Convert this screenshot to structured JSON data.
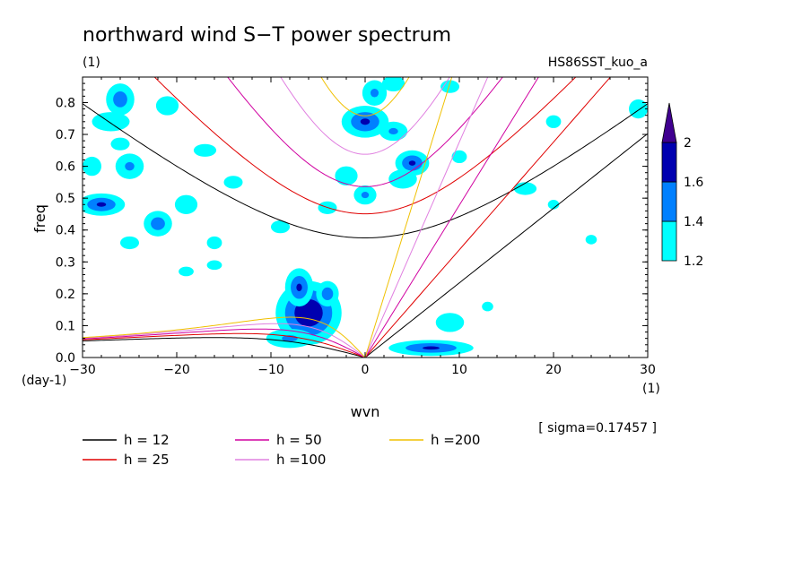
{
  "chart_data": {
    "type": "heatmap",
    "title": "northward wind S−T power spectrum",
    "subtitle_left": "(1)",
    "subtitle_right": "HS86SST_kuo_a",
    "xlabel": "wvn",
    "ylabel": "freq",
    "x_unit": "(1)",
    "y_unit": "(day-1)",
    "xlim": [
      -30,
      30
    ],
    "ylim": [
      0,
      0.88
    ],
    "x_ticks": [
      -30,
      -20,
      -10,
      0,
      10,
      20,
      30
    ],
    "y_ticks": [
      0.0,
      0.1,
      0.2,
      0.3,
      0.4,
      0.5,
      0.6,
      0.7,
      0.8
    ],
    "y_tick_labels": [
      "0.0",
      "0.1",
      "0.2",
      "0.3",
      "0.4",
      "0.5",
      "0.6",
      "0.7",
      "0.8"
    ],
    "sigma_note": "[ sigma=0.17457 ]",
    "colorbar": {
      "levels": [
        1.2,
        1.4,
        1.6,
        2
      ],
      "labels": [
        "1.2",
        "1.4",
        "1.6",
        "2"
      ],
      "colors": [
        "#00ffff",
        "#0080ff",
        "#0000b0",
        "#400090"
      ]
    },
    "dispersion_curves": [
      {
        "label": "h = 12",
        "h": 12,
        "color": "#000000"
      },
      {
        "label": "h = 25",
        "h": 25,
        "color": "#e00000"
      },
      {
        "label": "h = 50",
        "h": 50,
        "color": "#d000a0"
      },
      {
        "label": "h =100",
        "h": 100,
        "color": "#e080e0"
      },
      {
        "label": "h =200",
        "h": 200,
        "color": "#f0c000"
      }
    ],
    "blobs": [
      {
        "x": -6,
        "y": 0.14,
        "rx": 3.5,
        "ry": 0.1,
        "v": 1.9
      },
      {
        "x": -7,
        "y": 0.22,
        "rx": 1.5,
        "ry": 0.06,
        "v": 1.7
      },
      {
        "x": -4,
        "y": 0.2,
        "rx": 1.2,
        "ry": 0.04,
        "v": 1.6
      },
      {
        "x": -8,
        "y": 0.06,
        "rx": 2.5,
        "ry": 0.03,
        "v": 1.5
      },
      {
        "x": 7,
        "y": 0.03,
        "rx": 4.5,
        "ry": 0.025,
        "v": 1.7
      },
      {
        "x": 9,
        "y": 0.11,
        "rx": 1.5,
        "ry": 0.03,
        "v": 1.3
      },
      {
        "x": 0,
        "y": 0.74,
        "rx": 2.5,
        "ry": 0.05,
        "v": 1.7
      },
      {
        "x": 1,
        "y": 0.83,
        "rx": 1.3,
        "ry": 0.04,
        "v": 1.5
      },
      {
        "x": 3,
        "y": 0.71,
        "rx": 1.5,
        "ry": 0.03,
        "v": 1.5
      },
      {
        "x": 5,
        "y": 0.61,
        "rx": 1.8,
        "ry": 0.04,
        "v": 1.7
      },
      {
        "x": 4,
        "y": 0.56,
        "rx": 1.5,
        "ry": 0.03,
        "v": 1.4
      },
      {
        "x": 0,
        "y": 0.51,
        "rx": 1.2,
        "ry": 0.03,
        "v": 1.5
      },
      {
        "x": -2,
        "y": 0.57,
        "rx": 1.2,
        "ry": 0.03,
        "v": 1.3
      },
      {
        "x": -26,
        "y": 0.81,
        "rx": 1.5,
        "ry": 0.05,
        "v": 1.6
      },
      {
        "x": -27,
        "y": 0.74,
        "rx": 2,
        "ry": 0.03,
        "v": 1.4
      },
      {
        "x": -25,
        "y": 0.6,
        "rx": 1.5,
        "ry": 0.04,
        "v": 1.5
      },
      {
        "x": -28,
        "y": 0.48,
        "rx": 2.5,
        "ry": 0.035,
        "v": 1.7
      },
      {
        "x": -22,
        "y": 0.42,
        "rx": 1.5,
        "ry": 0.04,
        "v": 1.6
      },
      {
        "x": -19,
        "y": 0.48,
        "rx": 1.2,
        "ry": 0.03,
        "v": 1.4
      },
      {
        "x": -26,
        "y": 0.67,
        "rx": 1,
        "ry": 0.02,
        "v": 1.3
      },
      {
        "x": -21,
        "y": 0.79,
        "rx": 1.2,
        "ry": 0.03,
        "v": 1.4
      },
      {
        "x": -17,
        "y": 0.65,
        "rx": 1.2,
        "ry": 0.02,
        "v": 1.3
      },
      {
        "x": -16,
        "y": 0.36,
        "rx": 0.8,
        "ry": 0.02,
        "v": 1.3
      },
      {
        "x": -16,
        "y": 0.29,
        "rx": 0.8,
        "ry": 0.015,
        "v": 1.4
      },
      {
        "x": -19,
        "y": 0.27,
        "rx": 0.8,
        "ry": 0.015,
        "v": 1.3
      },
      {
        "x": -25,
        "y": 0.36,
        "rx": 1,
        "ry": 0.02,
        "v": 1.3
      },
      {
        "x": -14,
        "y": 0.55,
        "rx": 1,
        "ry": 0.02,
        "v": 1.3
      },
      {
        "x": 3,
        "y": 0.86,
        "rx": 1.2,
        "ry": 0.025,
        "v": 1.4
      },
      {
        "x": 9,
        "y": 0.85,
        "rx": 1,
        "ry": 0.02,
        "v": 1.3
      },
      {
        "x": 10,
        "y": 0.63,
        "rx": 0.8,
        "ry": 0.02,
        "v": 1.4
      },
      {
        "x": 17,
        "y": 0.53,
        "rx": 1.2,
        "ry": 0.02,
        "v": 1.3
      },
      {
        "x": 29,
        "y": 0.78,
        "rx": 1,
        "ry": 0.03,
        "v": 1.3
      },
      {
        "x": 20,
        "y": 0.74,
        "rx": 0.8,
        "ry": 0.02,
        "v": 1.3
      },
      {
        "x": -9,
        "y": 0.41,
        "rx": 1,
        "ry": 0.02,
        "v": 1.3
      },
      {
        "x": 13,
        "y": 0.16,
        "rx": 0.6,
        "ry": 0.015,
        "v": 1.3
      },
      {
        "x": -4,
        "y": 0.47,
        "rx": 1,
        "ry": 0.02,
        "v": 1.3
      },
      {
        "x": 20,
        "y": 0.48,
        "rx": 0.6,
        "ry": 0.015,
        "v": 1.3
      },
      {
        "x": 24,
        "y": 0.37,
        "rx": 0.6,
        "ry": 0.015,
        "v": 1.3
      },
      {
        "x": -29,
        "y": 0.6,
        "rx": 1,
        "ry": 0.03,
        "v": 1.3
      }
    ]
  }
}
